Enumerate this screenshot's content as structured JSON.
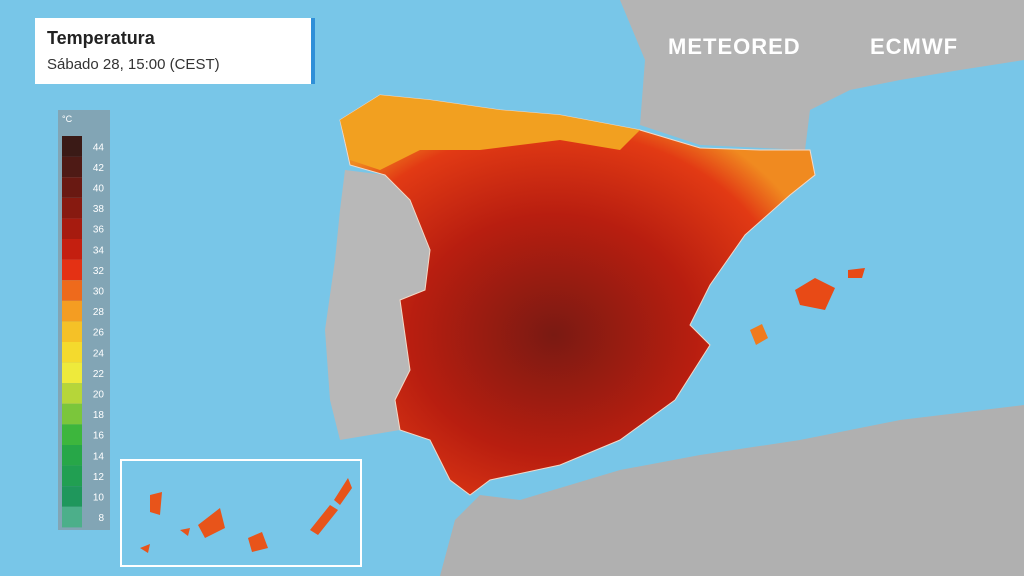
{
  "header": {
    "title": "Temperatura",
    "subtitle": "Sábado 28, 15:00 (CEST)"
  },
  "logos": {
    "meteored": "METEORED",
    "ecmwf": "ECMWF"
  },
  "legend": {
    "unit": "°C",
    "stops": [
      {
        "value": 44,
        "color": "#3a1a16"
      },
      {
        "value": 42,
        "color": "#4e1a15"
      },
      {
        "value": 40,
        "color": "#691912"
      },
      {
        "value": 38,
        "color": "#871a10"
      },
      {
        "value": 36,
        "color": "#a61b0f"
      },
      {
        "value": 34,
        "color": "#c41f10"
      },
      {
        "value": 32,
        "color": "#e43114"
      },
      {
        "value": 30,
        "color": "#ee6a1c"
      },
      {
        "value": 28,
        "color": "#f49d22"
      },
      {
        "value": 26,
        "color": "#f5c127"
      },
      {
        "value": 24,
        "color": "#f4da2d"
      },
      {
        "value": 22,
        "color": "#eeea3b"
      },
      {
        "value": 20,
        "color": "#b6d639"
      },
      {
        "value": 18,
        "color": "#7bc63b"
      },
      {
        "value": 16,
        "color": "#3db63d"
      },
      {
        "value": 14,
        "color": "#27a748"
      },
      {
        "value": 12,
        "color": "#219f52"
      },
      {
        "value": 10,
        "color": "#1f975c"
      },
      {
        "value": 8,
        "color": "#4caf8a"
      }
    ]
  }
}
